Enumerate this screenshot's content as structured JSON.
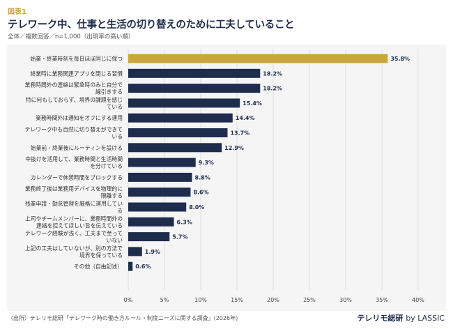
{
  "figure_label": "図表1",
  "title": "テレワーク中、仕事と生活の切り替えのために工夫していること",
  "subtitle": "全体／複数回答／n=1,000（出現率の高い順）",
  "source": "（出所）テレリモ総研「テレワーク時の働き方ルール・制度ニーズに関する調査」(2026年)",
  "brand": {
    "name": "テレリモ総研",
    "by": "by LASSIC"
  },
  "colors": {
    "highlight": "#c9a640",
    "bar": "#1f2d4d",
    "grid": "#d9d9d9",
    "panel": "#f5f5f5"
  },
  "chart_data": {
    "type": "bar",
    "orientation": "horizontal",
    "title": "テレワーク中、仕事と生活の切り替えのために工夫していること",
    "xlim": [
      0,
      40
    ],
    "xticks": [
      0,
      5,
      10,
      15,
      20,
      25,
      30,
      35,
      40
    ],
    "tick_suffix": "%",
    "grid": true,
    "categories": [
      [
        "始業・終業時刻を毎日ほぼ同じに保つ"
      ],
      [
        "終業時に業務関連アプリを閉じる習慣"
      ],
      [
        "業務時間外の連絡は緊急時のみと自分で",
        "線引きする"
      ],
      [
        "特に何もしておらず、境界の課題を感じ",
        "ている"
      ],
      [
        "業務時間外は通知をオフにする運用"
      ],
      [
        "テレワーク中も自然に切り替えができて",
        "いる"
      ],
      [
        "始業前・終業後にルーティンを設ける"
      ],
      [
        "中抜けを活用して、業務時間と生活時間",
        "を分けている"
      ],
      [
        "カレンダーで休憩時間をブロックする"
      ],
      [
        "業務終了後は業務用デバイスを物理的に",
        "隔離する"
      ],
      [
        "残業申請・勤怠管理を厳格に運用してい",
        "る"
      ],
      [
        "上司やチームメンバーに、業務時間外の",
        "連絡を控えてほしい旨を伝えている"
      ],
      [
        "テレワーク経験が浅く、工夫まで至って",
        "いない"
      ],
      [
        "上記の工夫はしていないが、別の方法で",
        "境界を保っている"
      ],
      [
        "その他（自由記述）"
      ]
    ],
    "values": [
      35.8,
      18.2,
      18.2,
      15.4,
      14.4,
      13.7,
      12.9,
      9.3,
      8.8,
      8.6,
      8.0,
      6.3,
      5.7,
      1.9,
      0.6
    ],
    "value_labels": [
      "35.8%",
      "18.2%",
      "18.2%",
      "15.4%",
      "14.4%",
      "13.7%",
      "12.9%",
      "9.3%",
      "8.8%",
      "8.6%",
      "8.0%",
      "6.3%",
      "5.7%",
      "1.9%",
      "0.6%"
    ],
    "highlight_index": 0
  }
}
